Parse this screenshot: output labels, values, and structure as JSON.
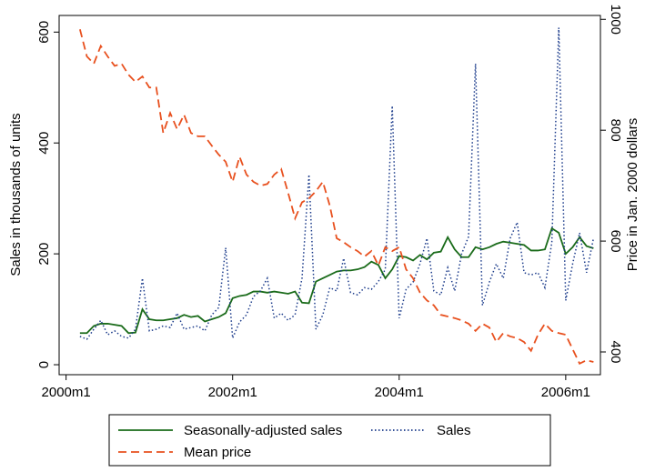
{
  "chart_data": {
    "type": "line",
    "x": [
      "2000m3",
      "2000m4",
      "2000m5",
      "2000m6",
      "2000m7",
      "2000m8",
      "2000m9",
      "2000m10",
      "2000m11",
      "2000m12",
      "2001m1",
      "2001m2",
      "2001m3",
      "2001m4",
      "2001m5",
      "2001m6",
      "2001m7",
      "2001m8",
      "2001m9",
      "2001m10",
      "2001m11",
      "2001m12",
      "2002m1",
      "2002m2",
      "2002m3",
      "2002m4",
      "2002m5",
      "2002m6",
      "2002m7",
      "2002m8",
      "2002m9",
      "2002m10",
      "2002m11",
      "2002m12",
      "2003m1",
      "2003m2",
      "2003m3",
      "2003m4",
      "2003m5",
      "2003m6",
      "2003m7",
      "2003m8",
      "2003m9",
      "2003m10",
      "2003m11",
      "2003m12",
      "2004m1",
      "2004m2",
      "2004m3",
      "2004m4",
      "2004m5",
      "2004m6",
      "2004m7",
      "2004m8",
      "2004m9",
      "2004m10",
      "2004m11",
      "2004m12",
      "2005m1",
      "2005m2",
      "2005m3",
      "2005m4",
      "2005m5",
      "2005m6",
      "2005m7",
      "2005m8",
      "2005m9",
      "2005m10",
      "2005m11",
      "2005m12",
      "2006m1",
      "2006m2",
      "2006m3",
      "2006m4",
      "2006m5"
    ],
    "xlim": [
      "1999m12",
      "2006m6"
    ],
    "xticks": [
      "2000m1",
      "2002m1",
      "2004m1",
      "2006m1"
    ],
    "ylabel": "Sales in thousands of units",
    "ylim": [
      -18,
      630
    ],
    "yticks": [
      0,
      200,
      400,
      600
    ],
    "y2label": "Price in Jan. 2000 dollars",
    "y2lim": [
      359,
      1007
    ],
    "y2ticks": [
      400,
      600,
      800,
      1000
    ],
    "legend": "bottom",
    "series": [
      {
        "name": "Seasonally-adjusted sales",
        "color": "#1a6b1a",
        "style": "solid",
        "values": [
          57,
          57,
          70,
          74,
          74,
          72,
          70,
          57,
          58,
          100,
          82,
          80,
          80,
          82,
          84,
          90,
          86,
          88,
          78,
          82,
          86,
          93,
          120,
          124,
          126,
          132,
          132,
          130,
          132,
          130,
          128,
          132,
          112,
          111,
          150,
          156,
          162,
          168,
          170,
          170,
          172,
          176,
          186,
          180,
          156,
          172,
          196,
          194,
          188,
          198,
          190,
          202,
          204,
          230,
          208,
          194,
          194,
          212,
          208,
          212,
          218,
          222,
          220,
          218,
          216,
          206,
          206,
          208,
          246,
          238,
          200,
          212,
          230,
          214,
          210
        ]
      },
      {
        "name": "Sales",
        "color": "#1a3a8a",
        "style": "dotted",
        "values": [
          51,
          46,
          64,
          80,
          54,
          61,
          51,
          48,
          64,
          156,
          61,
          64,
          70,
          67,
          93,
          64,
          67,
          70,
          61,
          90,
          103,
          211,
          48,
          77,
          90,
          123,
          133,
          156,
          84,
          93,
          80,
          90,
          156,
          343,
          64,
          90,
          139,
          133,
          192,
          130,
          126,
          139,
          136,
          150,
          172,
          467,
          84,
          136,
          149,
          182,
          228,
          133,
          126,
          175,
          133,
          200,
          231,
          543,
          107,
          149,
          182,
          156,
          228,
          257,
          166,
          162,
          166,
          139,
          221,
          608,
          116,
          182,
          238,
          166,
          228
        ]
      },
      {
        "name": "Mean price",
        "color": "#e8501e",
        "style": "dashed",
        "axis": "y2",
        "values": [
          982,
          933,
          920,
          952,
          933,
          916,
          920,
          900,
          887,
          897,
          877,
          877,
          795,
          831,
          802,
          828,
          795,
          789,
          789,
          772,
          756,
          743,
          707,
          752,
          720,
          707,
          700,
          703,
          720,
          730,
          687,
          641,
          670,
          677,
          690,
          707,
          664,
          605,
          598,
          589,
          582,
          572,
          582,
          556,
          589,
          582,
          589,
          549,
          533,
          507,
          493,
          484,
          467,
          464,
          461,
          457,
          451,
          438,
          451,
          444,
          418,
          434,
          428,
          425,
          418,
          402,
          431,
          451,
          438,
          434,
          431,
          405,
          379,
          385,
          382
        ]
      }
    ]
  }
}
